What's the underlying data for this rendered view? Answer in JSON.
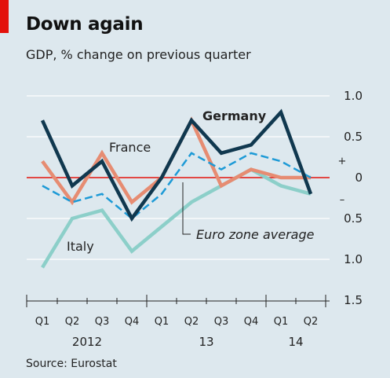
{
  "header": {
    "title": "Down again",
    "subtitle": "GDP, % change on previous quarter",
    "source": "Source: Eurostat"
  },
  "colors": {
    "background": "#dde8ee",
    "accent": "#e3120b",
    "germany": "#10384f",
    "france": "#e68c72",
    "euro": "#1d9ad6",
    "italy": "#8ccfc9",
    "zero_line": "#e3120b"
  },
  "chart_data": {
    "type": "line",
    "categories": [
      "Q1",
      "Q2",
      "Q3",
      "Q4",
      "Q1",
      "Q2",
      "Q3",
      "Q4",
      "Q1",
      "Q2"
    ],
    "year_labels": [
      {
        "label": "2012",
        "start": 0,
        "end": 3
      },
      {
        "label": "13",
        "start": 4,
        "end": 7
      },
      {
        "label": "14",
        "start": 8,
        "end": 9
      }
    ],
    "ylim": [
      -1.5,
      1.0
    ],
    "yticks": [
      {
        "value": 1.0,
        "label": "1.0"
      },
      {
        "value": 0.5,
        "label": "0.5"
      },
      {
        "value": 0,
        "label": "0"
      },
      {
        "value": -0.5,
        "label": "0.5"
      },
      {
        "value": -1.0,
        "label": "1.0"
      },
      {
        "value": -1.5,
        "label": "1.5"
      }
    ],
    "sign_labels": {
      "plus": "+",
      "minus": "–"
    },
    "grid": true,
    "series": [
      {
        "name": "Italy",
        "key": "italy",
        "values": [
          -1.1,
          -0.5,
          -0.4,
          -0.9,
          -0.6,
          -0.3,
          -0.1,
          0.1,
          -0.1,
          -0.2
        ]
      },
      {
        "name": "France",
        "key": "france",
        "values": [
          0.2,
          -0.3,
          0.3,
          -0.3,
          0.0,
          0.7,
          -0.1,
          0.1,
          0.0,
          0.0
        ]
      },
      {
        "name": "Euro zone average",
        "key": "euro",
        "dashed": true,
        "values": [
          -0.1,
          -0.3,
          -0.2,
          -0.5,
          -0.2,
          0.3,
          0.1,
          0.3,
          0.2,
          0.0
        ]
      },
      {
        "name": "Germany",
        "key": "germany",
        "values": [
          0.7,
          -0.1,
          0.2,
          -0.5,
          0.0,
          0.7,
          0.3,
          0.4,
          0.8,
          -0.2
        ]
      }
    ]
  }
}
